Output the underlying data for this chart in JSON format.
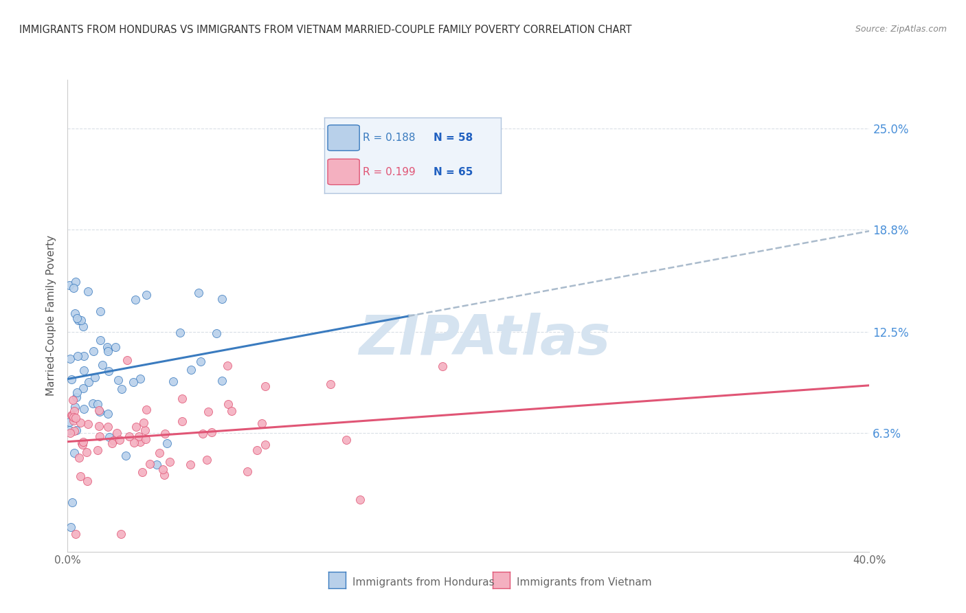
{
  "title": "IMMIGRANTS FROM HONDURAS VS IMMIGRANTS FROM VIETNAM MARRIED-COUPLE FAMILY POVERTY CORRELATION CHART",
  "source": "Source: ZipAtlas.com",
  "ylabel_label": "Married-Couple Family Poverty",
  "yticks": [
    0.063,
    0.125,
    0.188,
    0.25
  ],
  "ytick_labels": [
    "6.3%",
    "12.5%",
    "18.8%",
    "25.0%"
  ],
  "xlim": [
    0.0,
    0.4
  ],
  "ylim": [
    -0.01,
    0.28
  ],
  "R_honduras": 0.188,
  "N_honduras": 58,
  "R_vietnam": 0.199,
  "N_vietnam": 65,
  "color_honduras": "#b8d0ea",
  "color_vietnam": "#f4b0c0",
  "line_color_honduras": "#3a7bbf",
  "line_color_vietnam": "#e05575",
  "dash_color": "#aabbcc",
  "watermark": "ZIPAtlas",
  "watermark_color": "#d5e3f0",
  "background_color": "#ffffff",
  "grid_color": "#d0d8e0",
  "title_color": "#333333",
  "source_color": "#888888",
  "tick_color": "#666666",
  "ylabel_color": "#555555",
  "right_tick_color": "#4a90d9",
  "legend_face": "#eef4fb",
  "legend_edge": "#b0c4de",
  "legend_R_color_h": "#3a7bbf",
  "legend_R_color_v": "#e05575",
  "legend_N_color": "#2060c0"
}
